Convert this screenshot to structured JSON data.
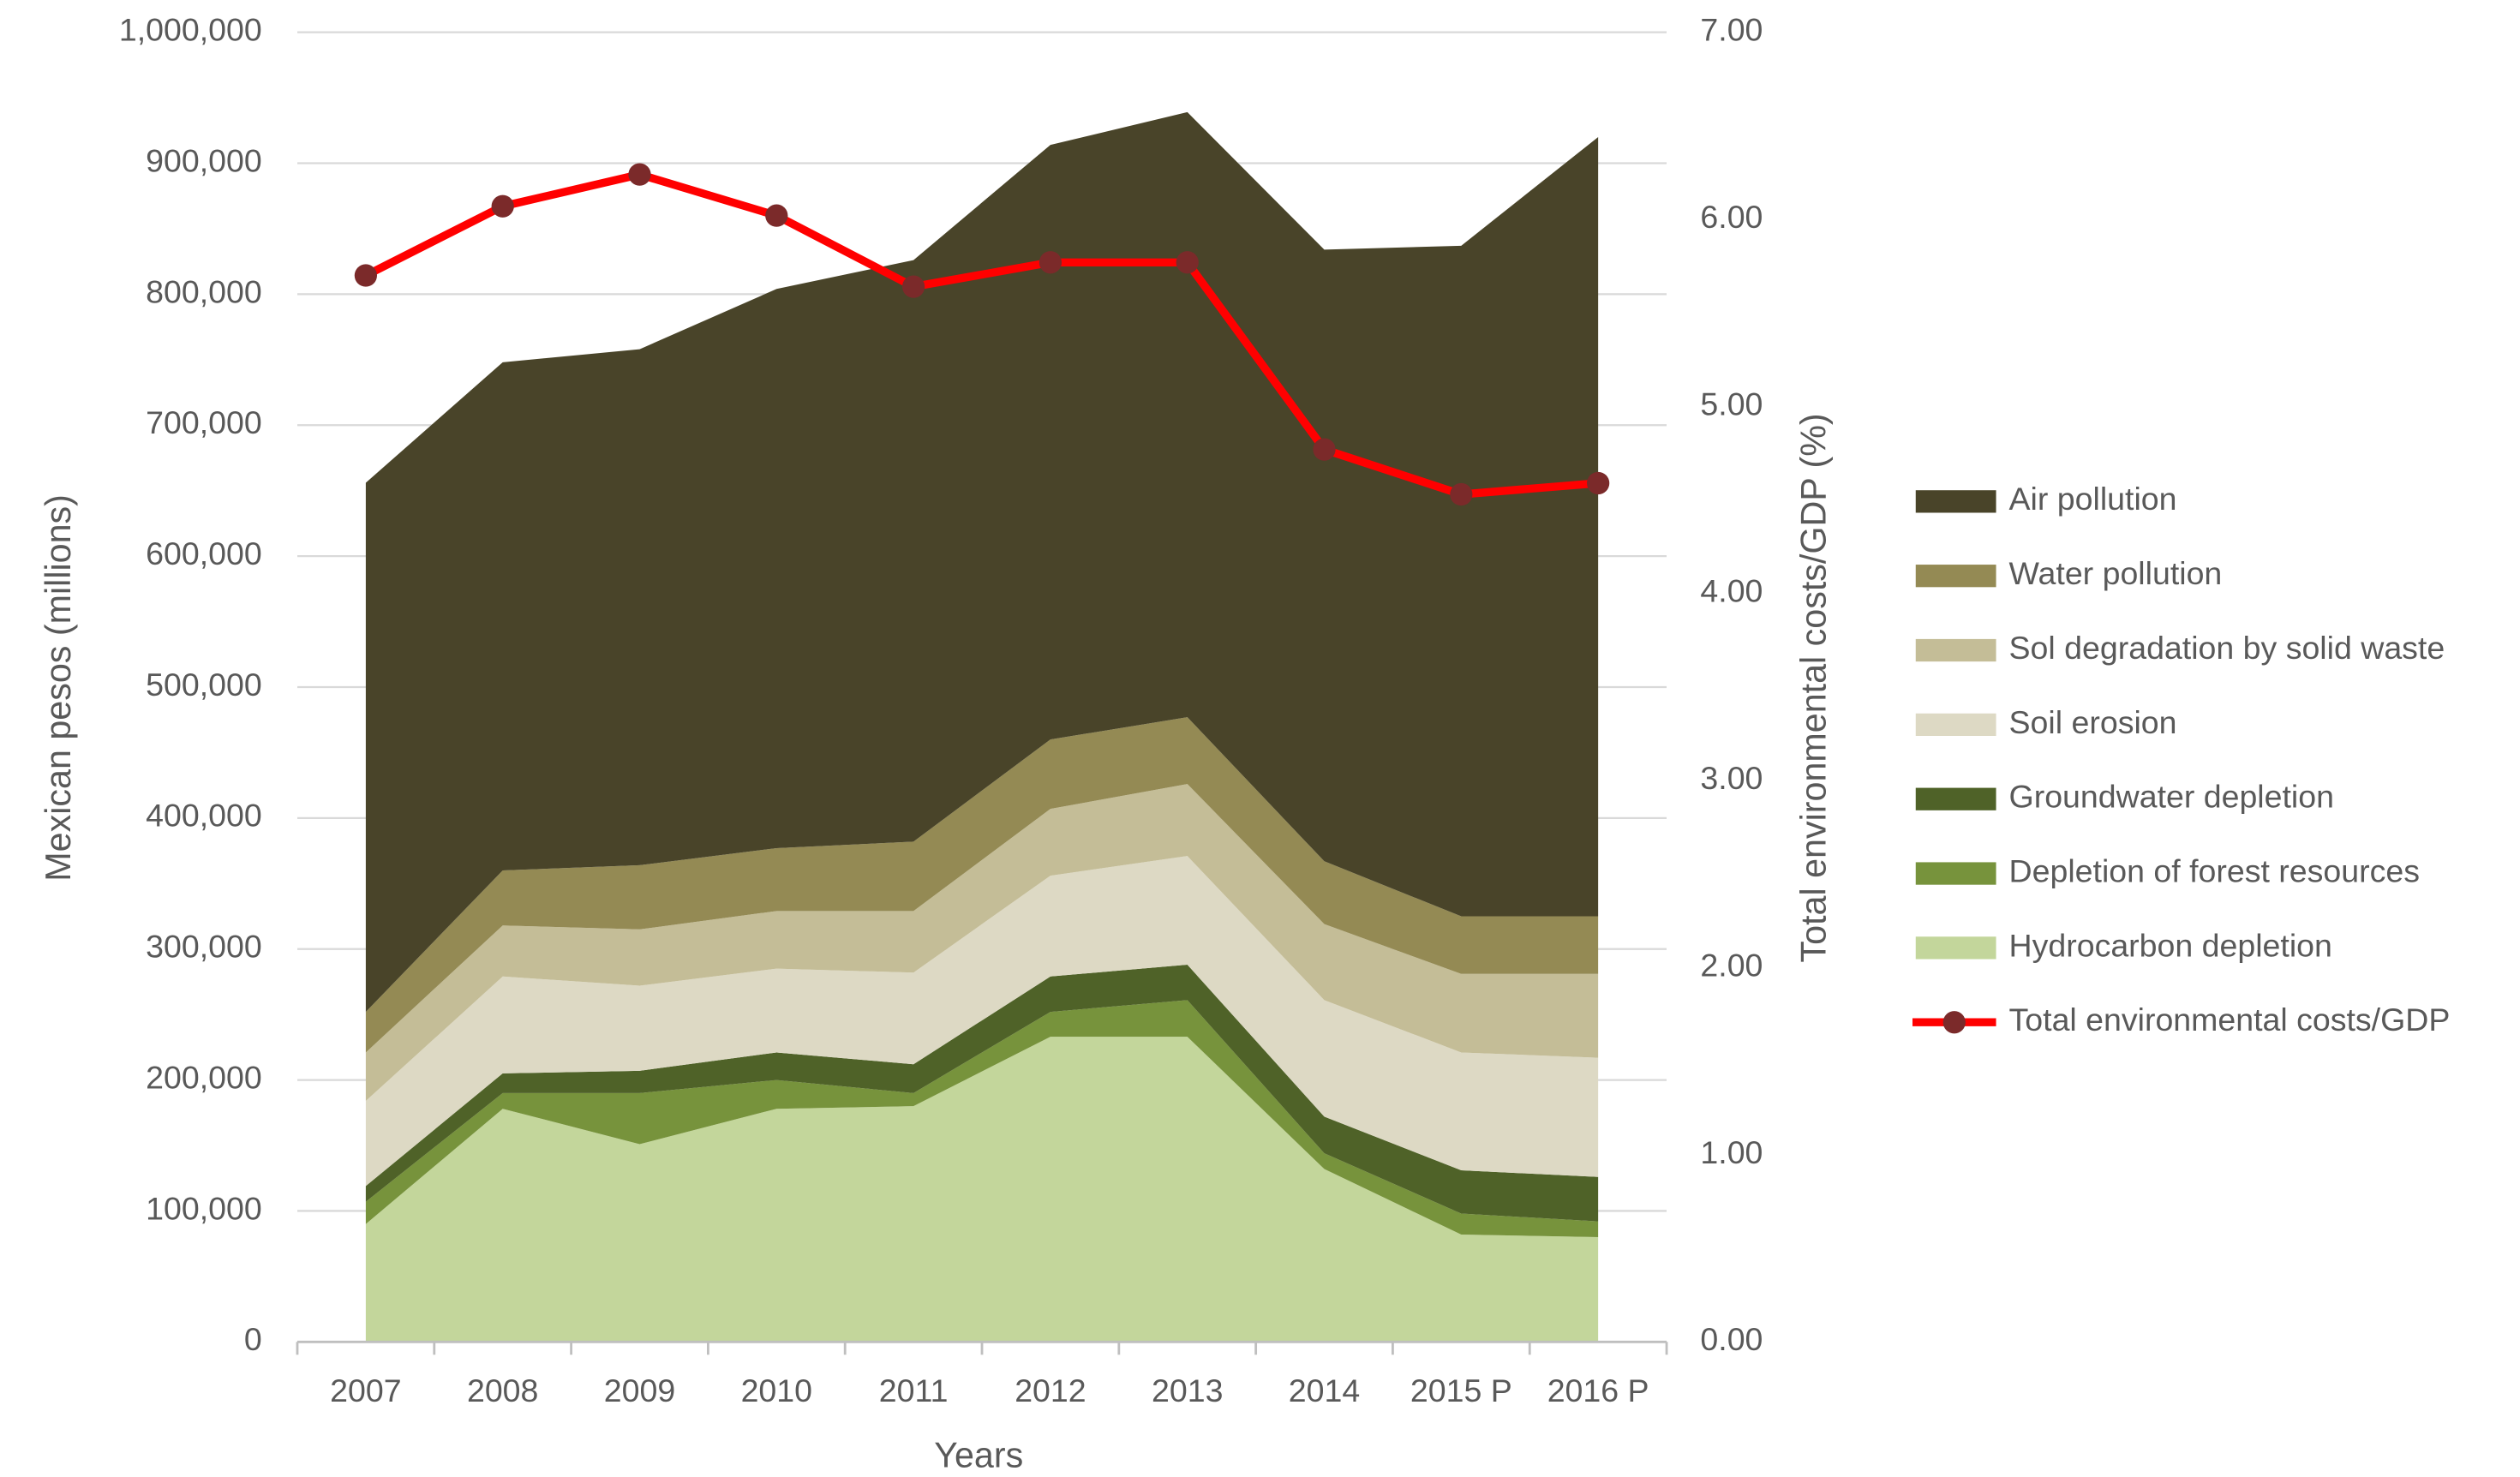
{
  "chart_data": {
    "type": "stacked_area_line",
    "x_label": "Years",
    "y_label": "Mexican pesos (millions)",
    "y2_label": "Total environmental costs/GDP (%)",
    "categories": [
      "2007",
      "2008",
      "2009",
      "2010",
      "2011",
      "2012",
      "2013",
      "2014",
      "2015 P",
      "2016 P"
    ],
    "series": [
      {
        "name": "Hydrocarbon depletion",
        "color": "#c3d69b",
        "values": [
          90000,
          178000,
          151000,
          178000,
          180000,
          233000,
          233000,
          132000,
          82000,
          80000
        ]
      },
      {
        "name": "Depletion of forest resources",
        "color": "#77933c",
        "values": [
          17000,
          12000,
          39000,
          22000,
          10000,
          19000,
          28000,
          12000,
          16000,
          12000
        ]
      },
      {
        "name": "Groundwater depletion",
        "color": "#4f6228",
        "values": [
          12000,
          15000,
          17000,
          21000,
          22000,
          27000,
          27000,
          28000,
          33000,
          34000
        ]
      },
      {
        "name": "Soil erosion",
        "color": "#ddd9c4",
        "values": [
          65000,
          74000,
          65000,
          64000,
          70000,
          77000,
          83000,
          89000,
          90000,
          91000
        ]
      },
      {
        "name": "Sol degradation by solid waste",
        "color": "#c4bd97",
        "values": [
          37000,
          39000,
          43000,
          44000,
          47000,
          51000,
          55000,
          58000,
          60000,
          64000
        ]
      },
      {
        "name": "Water pollution",
        "color": "#948a54",
        "values": [
          31000,
          42000,
          49000,
          48000,
          53000,
          53000,
          51000,
          48000,
          44000,
          44000
        ]
      },
      {
        "name": "Air pollution",
        "color": "#494429",
        "values": [
          404000,
          388000,
          394000,
          427000,
          444000,
          454000,
          462000,
          467000,
          512000,
          595000
        ]
      },
      {
        "name": "Total environmental costs/GDP",
        "color": "#ff0000",
        "marker_color": "#7b2a2a",
        "axis": "y2",
        "values": [
          5.7,
          6.07,
          6.24,
          6.02,
          5.64,
          5.77,
          5.77,
          4.77,
          4.53,
          4.59
        ]
      }
    ],
    "ylim": [
      0,
      1000000
    ],
    "yticks": [
      0,
      {
        "value": 100000,
        "label": "100,000"
      },
      {
        "value": 200000,
        "label": "200,000"
      },
      {
        "value": 300000,
        "label": "300,000"
      },
      {
        "value": 400000,
        "label": "400,000"
      },
      {
        "value": 500000,
        "label": "500,000"
      },
      {
        "value": 600000,
        "label": "600,000"
      },
      {
        "value": 700000,
        "label": "700,000"
      },
      {
        "value": 800000,
        "label": "800,000"
      },
      {
        "value": 900000,
        "label": "900,000"
      },
      {
        "value": 1000000,
        "label": "1,000,000"
      }
    ],
    "y2lim": [
      0,
      7
    ],
    "y2ticks": [
      {
        "value": 0,
        "label": "0.00"
      },
      {
        "value": 1,
        "label": "1.00"
      },
      {
        "value": 2,
        "label": "2.00"
      },
      {
        "value": 3,
        "label": "3.00"
      },
      {
        "value": 4,
        "label": "4.00"
      },
      {
        "value": 5,
        "label": "5.00"
      },
      {
        "value": 6,
        "label": "6.00"
      },
      {
        "value": 7,
        "label": "7.00"
      }
    ],
    "grid": true,
    "legend": "right"
  }
}
